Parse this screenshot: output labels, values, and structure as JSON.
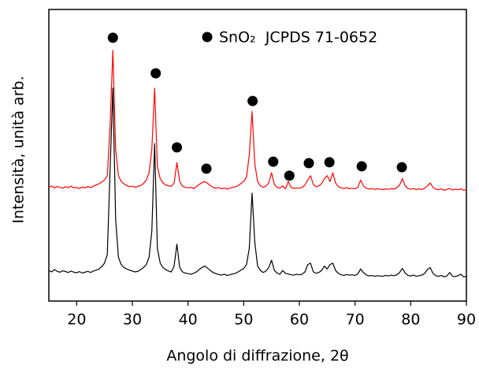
{
  "chart_data": {
    "type": "line",
    "xlabel": "Angolo di diffrazione, 2θ",
    "ylabel": "Intensità, unità arb.",
    "xlim": [
      15,
      90
    ],
    "xticks": [
      20,
      30,
      40,
      50,
      60,
      70,
      80,
      90
    ],
    "ylim": [
      0,
      100
    ],
    "x": [
      15,
      15.5,
      16,
      16.5,
      17,
      17.5,
      18,
      18.5,
      19,
      19.5,
      20,
      20.5,
      21,
      21.5,
      22,
      22.5,
      23,
      23.5,
      24,
      24.5,
      25,
      25.5,
      26,
      26.5,
      27,
      27.5,
      28,
      28.5,
      29,
      29.5,
      30,
      30.5,
      31,
      31.5,
      32,
      32.5,
      33,
      33.5,
      34,
      34.5,
      35,
      35.5,
      36,
      36.5,
      37,
      37.5,
      38,
      38.5,
      39,
      39.5,
      40,
      40.5,
      41,
      41.5,
      42,
      42.5,
      43,
      43.5,
      44,
      44.5,
      45,
      45.5,
      46,
      46.5,
      47,
      47.5,
      48,
      48.5,
      49,
      49.5,
      50,
      50.5,
      51,
      51.5,
      52,
      52.5,
      53,
      53.5,
      54,
      54.5,
      55,
      55.5,
      56,
      56.5,
      57,
      57.5,
      58,
      58.5,
      59,
      59.5,
      60,
      60.5,
      61,
      61.5,
      62,
      62.5,
      63,
      63.5,
      64,
      64.5,
      65,
      65.5,
      66,
      66.5,
      67,
      67.5,
      68,
      68.5,
      69,
      69.5,
      70,
      70.5,
      71,
      71.5,
      72,
      72.5,
      73,
      73.5,
      74,
      74.5,
      75,
      75.5,
      76,
      76.5,
      77,
      77.5,
      78,
      78.5,
      79,
      79.5,
      80,
      80.5,
      81,
      81.5,
      82,
      82.5,
      83,
      83.5,
      84,
      84.5,
      85,
      85.5,
      86,
      86.5,
      87,
      87.5,
      88,
      88.5,
      89,
      89.5,
      90
    ],
    "series": [
      {
        "color": "#ff0000",
        "values": [
          39,
          39.5,
          38.8,
          39.3,
          39,
          38.7,
          39.2,
          38.9,
          39.4,
          38.8,
          39,
          38.6,
          39.1,
          38.8,
          39.3,
          38.9,
          39.4,
          39.8,
          40.2,
          40.8,
          41.5,
          43,
          60,
          86,
          52,
          43,
          41,
          40.2,
          39.6,
          39.2,
          39.4,
          39,
          39.3,
          39.6,
          40.3,
          41.5,
          44,
          52,
          73,
          46,
          42,
          40.5,
          39.8,
          39.5,
          39.4,
          40.5,
          47.5,
          41,
          39.4,
          39,
          38.8,
          39,
          38.6,
          39.2,
          40,
          40.6,
          41,
          40.4,
          39.6,
          39,
          38.7,
          38.9,
          38.5,
          38.8,
          38.4,
          38.7,
          39,
          39.2,
          39.6,
          40.3,
          41,
          42.5,
          50,
          65,
          47,
          41,
          39.5,
          39,
          39.4,
          40.5,
          44,
          40,
          39,
          38.7,
          39.5,
          38.5,
          41,
          39,
          38.6,
          38.8,
          38.7,
          39,
          39.8,
          41.5,
          43,
          40,
          39.2,
          39.5,
          40.3,
          42,
          43,
          41,
          44,
          40.5,
          39.3,
          38.8,
          38.6,
          38.9,
          38.5,
          38.7,
          38.5,
          39,
          41.5,
          39.5,
          38.7,
          38.4,
          38.6,
          38.3,
          38.5,
          38.4,
          38.2,
          38.5,
          38.3,
          38.6,
          38.4,
          38.9,
          39.8,
          42,
          39.5,
          38.6,
          38.4,
          38.6,
          38.2,
          38.5,
          38.3,
          38.7,
          39.5,
          40.5,
          39,
          38.4,
          38.2,
          38.5,
          38,
          38.3,
          38.6,
          38.1,
          38.4,
          38.2,
          38.5,
          38,
          38.3
        ]
      },
      {
        "color": "#000000",
        "values": [
          10.5,
          10,
          10.8,
          10.2,
          9.9,
          10.4,
          10.1,
          9.8,
          10.3,
          9.9,
          9.7,
          10.1,
          9.6,
          9.9,
          10.2,
          9.8,
          10.3,
          10.6,
          11,
          11.8,
          13,
          16,
          45,
          73,
          28,
          15,
          12.5,
          11.5,
          11,
          10.6,
          10.3,
          10,
          10.2,
          10.8,
          11.5,
          12.5,
          15,
          24,
          54,
          18,
          13,
          11.5,
          10.8,
          10.3,
          10,
          12,
          19.5,
          11.5,
          10,
          9.6,
          9.4,
          9.2,
          9.5,
          10,
          10.8,
          11.5,
          12,
          11.3,
          10.5,
          9.8,
          9.4,
          9.1,
          8.9,
          9.2,
          8.8,
          9,
          9.3,
          9.5,
          10,
          10.6,
          11.2,
          12.5,
          18,
          37,
          20,
          12,
          10.5,
          9.8,
          10.3,
          11.5,
          14,
          10.5,
          9.6,
          9.2,
          10.5,
          9.5,
          9.3,
          9,
          8.9,
          9.2,
          9,
          9.2,
          10,
          12.5,
          13,
          10,
          9.5,
          9.8,
          10.5,
          12,
          11,
          12.5,
          13,
          10.5,
          9.5,
          9,
          8.8,
          9.1,
          8.9,
          9,
          8.8,
          9.3,
          11,
          9.8,
          9,
          8.6,
          8.8,
          8.5,
          8.7,
          8.6,
          8.5,
          8.8,
          8.6,
          8.9,
          8.7,
          9,
          9.8,
          11.2,
          9.6,
          8.8,
          8.6,
          8.9,
          8.5,
          8.7,
          8.9,
          9.5,
          10.8,
          11.5,
          9.5,
          8.7,
          8.5,
          8.8,
          8.3,
          8.6,
          9.8,
          8.5,
          8.4,
          8.7,
          9.2,
          8.3,
          8.5
        ]
      }
    ],
    "peaks": {
      "name": "SnO₂  JCPDS 71-0652",
      "color": "#000000",
      "x": [
        26.5,
        34.2,
        38,
        43.3,
        51.6,
        55.3,
        58.2,
        61.7,
        65.4,
        71.2,
        78.4
      ],
      "y": [
        90.3,
        78.1,
        52.7,
        45.4,
        68.6,
        47.8,
        43,
        47.3,
        47.6,
        46.2,
        45.9
      ]
    }
  }
}
